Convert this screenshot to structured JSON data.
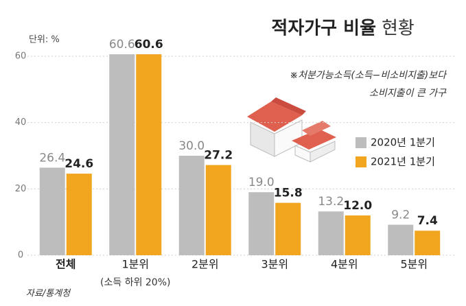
{
  "chart_data": {
    "type": "bar",
    "title": "적자가구 비율",
    "title_suffix": "현황",
    "unit_label": "단위: %",
    "notes": [
      "※처분가능소득(소득−비소비지출)보다",
      "소비지출이 큰 가구"
    ],
    "source": "자료/통계청",
    "categories": [
      "전체",
      "1분위",
      "2분위",
      "3분위",
      "4분위",
      "5분위"
    ],
    "annotations": [
      "(소득 하위 20%)"
    ],
    "series": [
      {
        "name": "2020년 1분기",
        "color": "#bdbdbd",
        "values": [
          26.4,
          60.6,
          30.0,
          19.0,
          13.2,
          9.2
        ],
        "value_labels": [
          "26.4",
          "60.6",
          "30.0",
          "19.0",
          "13.2",
          "9.2"
        ]
      },
      {
        "name": "2021년 1분기",
        "color": "#f2a51f",
        "values": [
          24.6,
          60.6,
          27.2,
          15.8,
          12.0,
          7.4
        ],
        "value_labels": [
          "24.6",
          "60.6",
          "27.2",
          "15.8",
          "12.0",
          "7.4"
        ]
      }
    ],
    "ylim": [
      0,
      62
    ],
    "yticks": [
      0,
      20,
      40,
      60
    ],
    "grid": true,
    "legend": "right"
  }
}
